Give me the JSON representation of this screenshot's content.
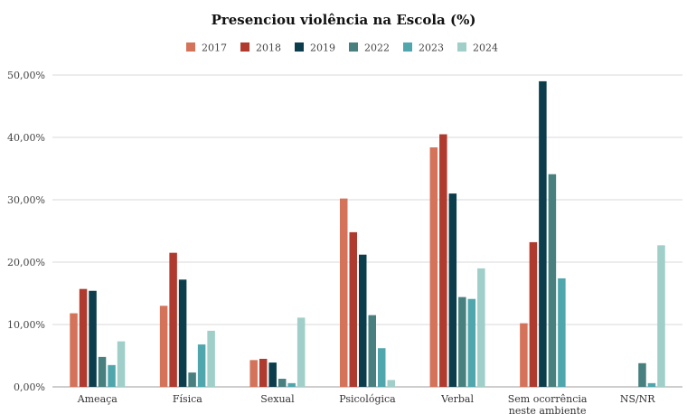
{
  "chart_data": {
    "type": "bar",
    "title": "Presenciou violência na Escola (%)",
    "xlabel": "",
    "ylabel": "",
    "ylim": [
      0,
      50
    ],
    "yticks": [
      0,
      10,
      20,
      30,
      40,
      50
    ],
    "ytick_labels": [
      "0,00%",
      "10,00%",
      "20,00%",
      "30,00%",
      "40,00%",
      "50,00%"
    ],
    "grid": true,
    "legend_position": "top-center",
    "categories": [
      [
        "Ameaça"
      ],
      [
        "Física"
      ],
      [
        "Sexual"
      ],
      [
        "Psicológica"
      ],
      [
        "Verbal"
      ],
      [
        "Sem ocorrência",
        "neste ambiente"
      ],
      [
        "NS/NR"
      ]
    ],
    "series": [
      {
        "name": "2017",
        "color": "#d4735a",
        "values": [
          11.8,
          13.0,
          4.3,
          30.2,
          38.4,
          10.2,
          null
        ]
      },
      {
        "name": "2018",
        "color": "#b03a2e",
        "values": [
          15.7,
          21.5,
          4.5,
          24.8,
          40.5,
          23.2,
          null
        ]
      },
      {
        "name": "2019",
        "color": "#0b3d4c",
        "values": [
          15.4,
          17.2,
          3.9,
          21.2,
          31.0,
          49.0,
          null
        ]
      },
      {
        "name": "2022",
        "color": "#47807e",
        "values": [
          4.8,
          2.3,
          1.3,
          11.5,
          14.4,
          34.1,
          3.8
        ]
      },
      {
        "name": "2023",
        "color": "#4fa7ad",
        "values": [
          3.5,
          6.8,
          0.6,
          6.2,
          14.1,
          17.4,
          0.6
        ]
      },
      {
        "name": "2024",
        "color": "#9fcfc8",
        "values": [
          7.3,
          9.0,
          11.1,
          1.1,
          19.0,
          null,
          22.7
        ]
      }
    ]
  }
}
